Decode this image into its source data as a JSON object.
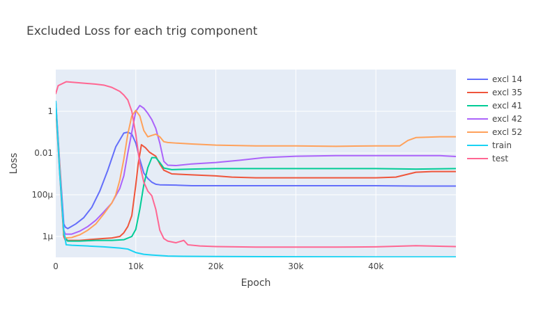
{
  "chart_data": {
    "type": "line",
    "title": "Excluded Loss for each trig component",
    "xlabel": "Epoch",
    "ylabel": "Loss",
    "x_scale": "linear",
    "y_scale": "log",
    "xlim": [
      0,
      50000
    ],
    "ylim": [
      1e-07,
      100
    ],
    "grid": true,
    "legend_position": "right",
    "x_ticks": [
      {
        "value": 0,
        "label": "0"
      },
      {
        "value": 10000,
        "label": "10k"
      },
      {
        "value": 20000,
        "label": "20k"
      },
      {
        "value": 30000,
        "label": "30k"
      },
      {
        "value": 40000,
        "label": "40k"
      }
    ],
    "y_ticks": [
      {
        "value": 1e-06,
        "label": "1μ"
      },
      {
        "value": 0.0001,
        "label": "100μ"
      },
      {
        "value": 0.01,
        "label": "0.01"
      },
      {
        "value": 1,
        "label": "1"
      }
    ],
    "series": [
      {
        "name": "excl 14",
        "color": "#636efa",
        "points": [
          [
            0,
            3.0
          ],
          [
            500,
            0.003
          ],
          [
            1000,
            4e-06
          ],
          [
            1200,
            2.8e-06
          ],
          [
            1500,
            2.4e-06
          ],
          [
            2500,
            4e-06
          ],
          [
            3500,
            8e-06
          ],
          [
            4500,
            2.5e-05
          ],
          [
            5500,
            0.00015
          ],
          [
            6500,
            0.0015
          ],
          [
            7500,
            0.02
          ],
          [
            8500,
            0.09
          ],
          [
            9000,
            0.1
          ],
          [
            9500,
            0.08
          ],
          [
            10000,
            0.03
          ],
          [
            10500,
            0.005
          ],
          [
            11000,
            0.0011
          ],
          [
            11500,
            0.0006
          ],
          [
            12000,
            0.0004
          ],
          [
            12500,
            0.00032
          ],
          [
            13000,
            0.0003
          ],
          [
            15000,
            0.00029
          ],
          [
            17000,
            0.00027
          ],
          [
            20000,
            0.00027
          ],
          [
            25000,
            0.00027
          ],
          [
            30000,
            0.00027
          ],
          [
            35000,
            0.00027
          ],
          [
            40000,
            0.00027
          ],
          [
            45000,
            0.00026
          ],
          [
            50000,
            0.00026
          ]
        ]
      },
      {
        "name": "excl 35",
        "color": "#ef553b",
        "points": [
          [
            0,
            1.5
          ],
          [
            500,
            0.001
          ],
          [
            1000,
            1e-06
          ],
          [
            1200,
            6.5e-07
          ],
          [
            2000,
            6.5e-07
          ],
          [
            3000,
            6.5e-07
          ],
          [
            4000,
            7e-07
          ],
          [
            5000,
            7.5e-07
          ],
          [
            6000,
            8e-07
          ],
          [
            7000,
            8.5e-07
          ],
          [
            8000,
            1e-06
          ],
          [
            8500,
            1.5e-06
          ],
          [
            9000,
            3e-06
          ],
          [
            9500,
            1e-05
          ],
          [
            10000,
            0.0003
          ],
          [
            10300,
            0.003
          ],
          [
            10700,
            0.025
          ],
          [
            11200,
            0.018
          ],
          [
            11700,
            0.011
          ],
          [
            12500,
            0.007
          ],
          [
            13000,
            0.003
          ],
          [
            13500,
            0.0015
          ],
          [
            14500,
            0.001
          ],
          [
            17000,
            0.0009
          ],
          [
            20000,
            0.0008
          ],
          [
            22000,
            0.0007
          ],
          [
            25000,
            0.00065
          ],
          [
            30000,
            0.00065
          ],
          [
            35000,
            0.00065
          ],
          [
            40000,
            0.00065
          ],
          [
            42500,
            0.0007
          ],
          [
            45000,
            0.0012
          ],
          [
            47000,
            0.0013
          ],
          [
            50000,
            0.0013
          ]
        ]
      },
      {
        "name": "excl 41",
        "color": "#00cc96",
        "points": [
          [
            0,
            2.2
          ],
          [
            500,
            0.002
          ],
          [
            1000,
            1.2e-06
          ],
          [
            1500,
            6e-07
          ],
          [
            3000,
            6e-07
          ],
          [
            5000,
            6.5e-07
          ],
          [
            7000,
            6.5e-07
          ],
          [
            8500,
            7e-07
          ],
          [
            9500,
            1e-06
          ],
          [
            10000,
            2.2e-06
          ],
          [
            10500,
            2e-05
          ],
          [
            11000,
            0.0003
          ],
          [
            11500,
            0.002
          ],
          [
            12000,
            0.006
          ],
          [
            12500,
            0.006
          ],
          [
            13000,
            0.0035
          ],
          [
            13500,
            0.0019
          ],
          [
            14500,
            0.0016
          ],
          [
            17000,
            0.0017
          ],
          [
            20000,
            0.0018
          ],
          [
            25000,
            0.0018
          ],
          [
            30000,
            0.0018
          ],
          [
            35000,
            0.0018
          ],
          [
            40000,
            0.0018
          ],
          [
            45000,
            0.0017
          ],
          [
            50000,
            0.0018
          ]
        ]
      },
      {
        "name": "excl 42",
        "color": "#ab63fa",
        "points": [
          [
            0,
            2.5
          ],
          [
            500,
            0.002
          ],
          [
            1000,
            2e-06
          ],
          [
            1200,
            1.3e-06
          ],
          [
            2000,
            1.3e-06
          ],
          [
            3000,
            1.8e-06
          ],
          [
            4000,
            3e-06
          ],
          [
            5000,
            6e-06
          ],
          [
            6000,
            1.5e-05
          ],
          [
            7000,
            4e-05
          ],
          [
            8000,
            0.0002
          ],
          [
            8500,
            0.0008
          ],
          [
            9000,
            0.01
          ],
          [
            9500,
            0.1
          ],
          [
            10000,
            1.0
          ],
          [
            10500,
            1.9
          ],
          [
            11000,
            1.4
          ],
          [
            11500,
            0.8
          ],
          [
            12000,
            0.4
          ],
          [
            12500,
            0.15
          ],
          [
            13000,
            0.03
          ],
          [
            13500,
            0.004
          ],
          [
            14000,
            0.0026
          ],
          [
            15000,
            0.0025
          ],
          [
            17000,
            0.003
          ],
          [
            20000,
            0.0035
          ],
          [
            23000,
            0.0045
          ],
          [
            26000,
            0.006
          ],
          [
            30000,
            0.007
          ],
          [
            35000,
            0.0075
          ],
          [
            40000,
            0.0075
          ],
          [
            45000,
            0.0075
          ],
          [
            48000,
            0.0075
          ],
          [
            50000,
            0.0068
          ]
        ]
      },
      {
        "name": "excl 52",
        "color": "#ffa15a",
        "points": [
          [
            0,
            2.2
          ],
          [
            500,
            0.002
          ],
          [
            1000,
            1.5e-06
          ],
          [
            1200,
            8.5e-07
          ],
          [
            2000,
            9e-07
          ],
          [
            3000,
            1.2e-06
          ],
          [
            4000,
            2e-06
          ],
          [
            5000,
            4e-06
          ],
          [
            6000,
            1.2e-05
          ],
          [
            7000,
            4e-05
          ],
          [
            7500,
            0.0001
          ],
          [
            8000,
            0.0005
          ],
          [
            8500,
            0.005
          ],
          [
            9000,
            0.08
          ],
          [
            9500,
            0.6
          ],
          [
            10000,
            1.1
          ],
          [
            10500,
            0.6
          ],
          [
            11000,
            0.12
          ],
          [
            11500,
            0.06
          ],
          [
            12000,
            0.07
          ],
          [
            12500,
            0.08
          ],
          [
            13000,
            0.06
          ],
          [
            13500,
            0.035
          ],
          [
            14000,
            0.032
          ],
          [
            15000,
            0.03
          ],
          [
            17000,
            0.027
          ],
          [
            20000,
            0.024
          ],
          [
            25000,
            0.022
          ],
          [
            30000,
            0.022
          ],
          [
            35000,
            0.021
          ],
          [
            40000,
            0.022
          ],
          [
            43000,
            0.022
          ],
          [
            44000,
            0.04
          ],
          [
            45000,
            0.055
          ],
          [
            48000,
            0.06
          ],
          [
            50000,
            0.06
          ]
        ]
      },
      {
        "name": "train",
        "color": "#19d3f3",
        "points": [
          [
            0,
            3.0
          ],
          [
            500,
            0.001
          ],
          [
            1000,
            2e-06
          ],
          [
            1300,
            4e-07
          ],
          [
            2000,
            3.8e-07
          ],
          [
            4000,
            3.5e-07
          ],
          [
            6000,
            3.2e-07
          ],
          [
            8000,
            2.8e-07
          ],
          [
            9000,
            2.5e-07
          ],
          [
            10000,
            1.7e-07
          ],
          [
            11000,
            1.4e-07
          ],
          [
            12000,
            1.3e-07
          ],
          [
            14000,
            1.15e-07
          ],
          [
            16000,
            1.12e-07
          ],
          [
            20000,
            1.1e-07
          ],
          [
            30000,
            1.07e-07
          ],
          [
            40000,
            1.05e-07
          ],
          [
            50000,
            1.05e-07
          ]
        ]
      },
      {
        "name": "test",
        "color": "#ff6692",
        "points": [
          [
            0,
            7
          ],
          [
            300,
            17
          ],
          [
            1300,
            26
          ],
          [
            3000,
            23
          ],
          [
            5000,
            20
          ],
          [
            6000,
            18
          ],
          [
            7000,
            14
          ],
          [
            8000,
            9
          ],
          [
            8500,
            6
          ],
          [
            9000,
            3.5
          ],
          [
            9500,
            1.0
          ],
          [
            10000,
            0.08
          ],
          [
            10500,
            0.003
          ],
          [
            11000,
            0.0004
          ],
          [
            11500,
            0.00015
          ],
          [
            12000,
            9e-05
          ],
          [
            12500,
            2e-05
          ],
          [
            13000,
            2e-06
          ],
          [
            13500,
            8e-07
          ],
          [
            14000,
            6e-07
          ],
          [
            15000,
            5e-07
          ],
          [
            16000,
            6.5e-07
          ],
          [
            16500,
            4e-07
          ],
          [
            18000,
            3.5e-07
          ],
          [
            20000,
            3.3e-07
          ],
          [
            25000,
            3.1e-07
          ],
          [
            30000,
            3.1e-07
          ],
          [
            35000,
            3.1e-07
          ],
          [
            40000,
            3.2e-07
          ],
          [
            45000,
            3.6e-07
          ],
          [
            50000,
            3.3e-07
          ]
        ]
      }
    ]
  }
}
